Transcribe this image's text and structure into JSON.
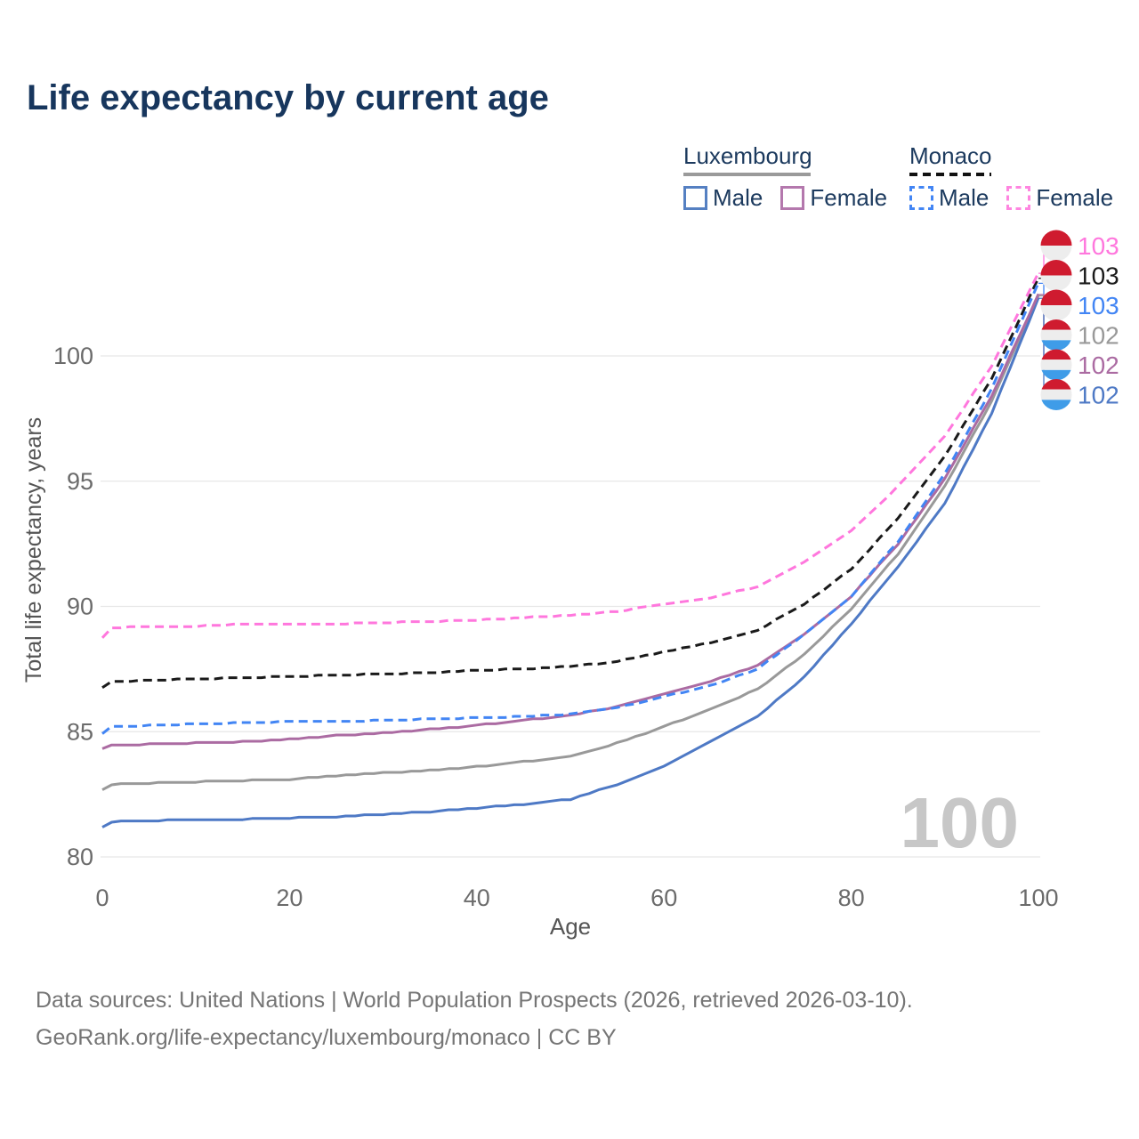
{
  "title": "Life expectancy by current age",
  "legend": {
    "groups": [
      {
        "label": "Luxembourg",
        "line_style": "solid",
        "underline_color": "#9a9a9a",
        "items": [
          {
            "label": "Male",
            "color": "#5580c2"
          },
          {
            "label": "Female",
            "color": "#b478ad"
          }
        ]
      },
      {
        "label": "Monaco",
        "line_style": "dashed",
        "underline_color": "#111111",
        "items": [
          {
            "label": "Male",
            "color": "#4285f4"
          },
          {
            "label": "Female",
            "color": "#ff85e0"
          }
        ]
      }
    ]
  },
  "watermark": "100",
  "footer": {
    "line1": "Data sources: United Nations | World Population Prospects (2026, retrieved 2026-03-10).",
    "line2": "GeoRank.org/life-expectancy/luxembourg/monaco | CC BY"
  },
  "chart_data": {
    "type": "line",
    "title": "Life expectancy by current age",
    "xlabel": "Age",
    "ylabel": "Total life expectancy, years",
    "xlim": [
      0,
      100
    ],
    "ylim": [
      80,
      103.5
    ],
    "x_ticks": [
      0,
      20,
      40,
      60,
      80,
      100
    ],
    "y_ticks": [
      80,
      85,
      90,
      95,
      100
    ],
    "grid": "horizontal",
    "legend_position": "top-right",
    "x": [
      0,
      1,
      5,
      10,
      15,
      20,
      25,
      30,
      35,
      40,
      45,
      50,
      55,
      60,
      65,
      70,
      75,
      80,
      85,
      90,
      95,
      100
    ],
    "series": [
      {
        "name": "Luxembourg Total",
        "country": "Luxembourg",
        "sex": "Both",
        "color": "#999999",
        "dashed": false,
        "values": [
          82.7,
          82.9,
          82.95,
          83.0,
          83.05,
          83.1,
          83.25,
          83.35,
          83.45,
          83.6,
          83.8,
          84.0,
          84.55,
          85.2,
          85.9,
          86.7,
          88.1,
          89.9,
          92.1,
          94.8,
          98.2,
          102.4
        ]
      },
      {
        "name": "Luxembourg Male",
        "country": "Luxembourg",
        "sex": "Male",
        "color": "#4e79c5",
        "dashed": false,
        "values": [
          81.2,
          81.4,
          81.45,
          81.5,
          81.5,
          81.55,
          81.6,
          81.7,
          81.8,
          81.95,
          82.1,
          82.3,
          82.9,
          83.6,
          84.6,
          85.6,
          87.2,
          89.3,
          91.6,
          94.1,
          97.7,
          102.3
        ]
      },
      {
        "name": "Luxembourg Female",
        "country": "Luxembourg",
        "sex": "Female",
        "color": "#ab6ba2",
        "dashed": false,
        "values": [
          84.3,
          84.45,
          84.5,
          84.55,
          84.6,
          84.7,
          84.85,
          84.95,
          85.1,
          85.25,
          85.45,
          85.65,
          86.0,
          86.5,
          87.0,
          87.65,
          88.9,
          90.4,
          92.5,
          95.1,
          98.4,
          102.45
        ]
      },
      {
        "name": "Monaco Total",
        "country": "Monaco",
        "sex": "Both",
        "color": "#1a1a1a",
        "dashed": true,
        "values": [
          86.75,
          87.0,
          87.05,
          87.1,
          87.15,
          87.2,
          87.25,
          87.3,
          87.35,
          87.45,
          87.5,
          87.6,
          87.8,
          88.2,
          88.55,
          89.05,
          90.1,
          91.5,
          93.5,
          96.0,
          99.1,
          103.1
        ]
      },
      {
        "name": "Monaco Male",
        "country": "Monaco",
        "sex": "Male",
        "color": "#4285f4",
        "dashed": true,
        "values": [
          84.9,
          85.2,
          85.25,
          85.3,
          85.35,
          85.4,
          85.4,
          85.45,
          85.5,
          85.55,
          85.6,
          85.7,
          85.95,
          86.4,
          86.85,
          87.5,
          88.9,
          90.4,
          92.6,
          95.3,
          98.7,
          102.9
        ]
      },
      {
        "name": "Monaco Female",
        "country": "Monaco",
        "sex": "Female",
        "color": "#ff77dd",
        "dashed": true,
        "values": [
          88.75,
          89.15,
          89.2,
          89.2,
          89.3,
          89.3,
          89.3,
          89.35,
          89.4,
          89.45,
          89.55,
          89.65,
          89.8,
          90.1,
          90.35,
          90.8,
          91.8,
          93.0,
          94.8,
          96.8,
          99.6,
          103.3
        ]
      }
    ],
    "end_labels": [
      {
        "value": "103",
        "flag": "monaco",
        "series": "Monaco Female",
        "color": "#ff77dd"
      },
      {
        "value": "103",
        "flag": "monaco",
        "series": "Monaco Total",
        "color": "#1a1a1a"
      },
      {
        "value": "103",
        "flag": "monaco",
        "series": "Monaco Male",
        "color": "#4285f4"
      },
      {
        "value": "102",
        "flag": "luxembourg",
        "series": "Luxembourg Total",
        "color": "#999999"
      },
      {
        "value": "102",
        "flag": "luxembourg",
        "series": "Luxembourg Female",
        "color": "#ab6ba2"
      },
      {
        "value": "102",
        "flag": "luxembourg",
        "series": "Luxembourg Male",
        "color": "#4e79c5"
      }
    ],
    "flag_colors": {
      "red": "#cf1b2f",
      "white": "#ededed",
      "blue": "#3f9ce8"
    }
  }
}
